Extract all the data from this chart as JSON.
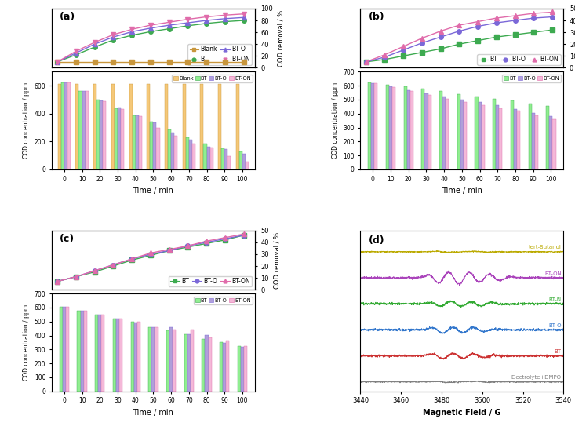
{
  "time": [
    0,
    10,
    20,
    30,
    40,
    50,
    60,
    70,
    80,
    90,
    100
  ],
  "a_line_blank": [
    10,
    10,
    10,
    10,
    10,
    10,
    10,
    10,
    10,
    10,
    10
  ],
  "a_line_BT": [
    10,
    22,
    35,
    47,
    55,
    61,
    66,
    71,
    75,
    78,
    80
  ],
  "a_line_BTO": [
    10,
    25,
    40,
    52,
    61,
    67,
    72,
    76,
    80,
    83,
    85
  ],
  "a_line_BTON": [
    10,
    28,
    43,
    56,
    65,
    72,
    77,
    82,
    86,
    89,
    91
  ],
  "a_bar_blank": [
    610,
    610,
    610,
    610,
    610,
    610,
    610,
    610,
    610,
    610,
    610
  ],
  "a_bar_BT": [
    625,
    560,
    500,
    440,
    390,
    345,
    285,
    230,
    185,
    150,
    130
  ],
  "a_bar_BTO": [
    625,
    560,
    495,
    445,
    390,
    335,
    265,
    215,
    165,
    145,
    110
  ],
  "a_bar_BTON": [
    625,
    560,
    490,
    435,
    380,
    295,
    240,
    185,
    155,
    95,
    55
  ],
  "b_line_BT": [
    5,
    7,
    10,
    13,
    16,
    20,
    23,
    26,
    28,
    30,
    32
  ],
  "b_line_BTO": [
    5,
    9,
    15,
    21,
    26,
    31,
    35,
    38,
    40,
    42,
    43
  ],
  "b_line_BTON": [
    5,
    11,
    18,
    25,
    31,
    36,
    39,
    42,
    44,
    46,
    47
  ],
  "b_bar_BT": [
    625,
    605,
    595,
    580,
    560,
    540,
    520,
    508,
    495,
    470,
    455
  ],
  "b_bar_BTO": [
    618,
    595,
    568,
    545,
    520,
    500,
    483,
    460,
    432,
    402,
    380
  ],
  "b_bar_BTON": [
    618,
    592,
    562,
    534,
    504,
    482,
    462,
    437,
    422,
    390,
    362
  ],
  "c_line_BT": [
    7,
    11,
    15,
    20,
    25,
    29,
    33,
    36,
    39,
    42,
    46
  ],
  "c_line_BTO": [
    7,
    11,
    16,
    21,
    26,
    30,
    33,
    37,
    40,
    43,
    46
  ],
  "c_line_BTON": [
    7,
    11,
    16,
    21,
    26,
    31,
    34,
    37,
    41,
    44,
    47
  ],
  "c_bar_BT": [
    605,
    578,
    552,
    522,
    496,
    462,
    436,
    406,
    376,
    352,
    322
  ],
  "c_bar_BTO": [
    605,
    578,
    550,
    521,
    494,
    462,
    462,
    406,
    404,
    346,
    316
  ],
  "c_bar_BTON": [
    605,
    578,
    550,
    521,
    496,
    462,
    440,
    440,
    388,
    366,
    326
  ],
  "color_blank": "#F5C878",
  "color_BT": "#90EE90",
  "color_BTO": "#B09FDA",
  "color_BTON": "#F4B8D8",
  "line_color_blank": "#C8963C",
  "line_color_BT": "#3DAA50",
  "line_color_BTO": "#7B68D8",
  "line_color_BTON": "#E06BAA",
  "esr_colors": {
    "Electrolyte+DMPO": "#808080",
    "BT": "#CC3333",
    "BT-O": "#3377CC",
    "BT-N": "#33AA33",
    "BT-ON": "#AA44BB",
    "tert-Butanol": "#BBAA00"
  }
}
